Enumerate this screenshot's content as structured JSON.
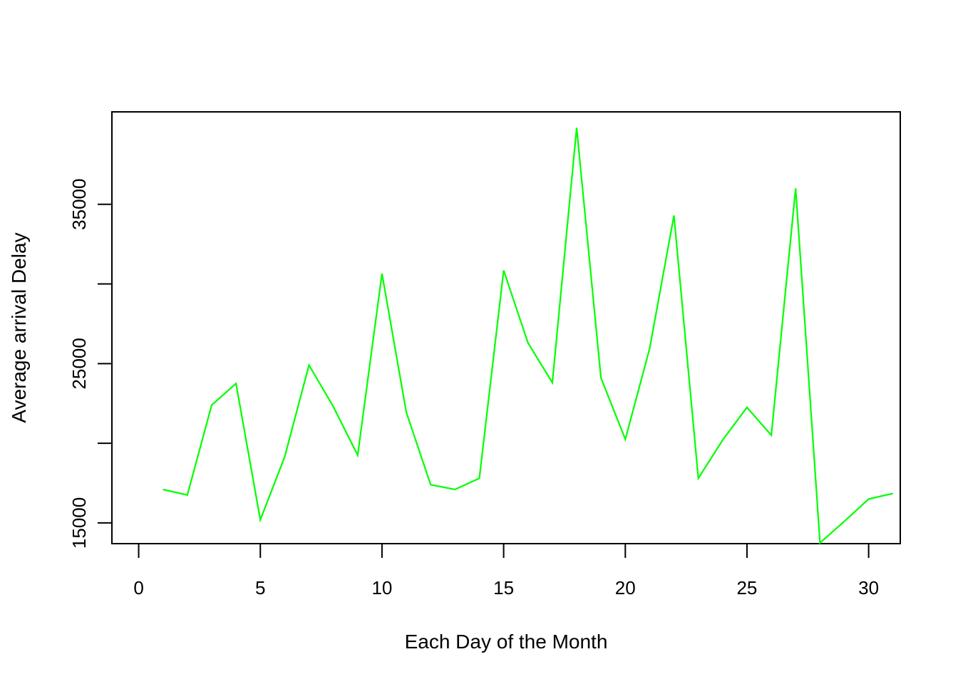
{
  "chart_data": {
    "type": "line",
    "title": "",
    "xlabel": "Each Day of the Month",
    "ylabel": "Average arrival Delay",
    "xlim": [
      -1.1,
      31.3
    ],
    "ylim": [
      13700,
      40800
    ],
    "x_ticks": [
      0,
      5,
      10,
      15,
      20,
      25,
      30
    ],
    "y_ticks": [
      15000,
      20000,
      25000,
      30000,
      35000
    ],
    "y_tick_labels": [
      "15000",
      "",
      "25000",
      "",
      "35000"
    ],
    "grid": false,
    "legend": "none",
    "line_color": "#00ff00",
    "series": [
      {
        "x": [
          1,
          2,
          3,
          4,
          5,
          6,
          7,
          8,
          9,
          10,
          11,
          12,
          13,
          14,
          15,
          16,
          17,
          18,
          19,
          20,
          21,
          22,
          23,
          24,
          25,
          26,
          27,
          28,
          29,
          30,
          31
        ],
        "values": [
          17100,
          16750,
          22400,
          23750,
          15200,
          19150,
          24900,
          22300,
          19250,
          30650,
          21950,
          17400,
          17100,
          17800,
          30850,
          26300,
          23800,
          39800,
          24100,
          20250,
          25950,
          34300,
          17800,
          20200,
          22250,
          20500,
          36000,
          13750,
          15100,
          16500,
          16850
        ]
      }
    ]
  }
}
